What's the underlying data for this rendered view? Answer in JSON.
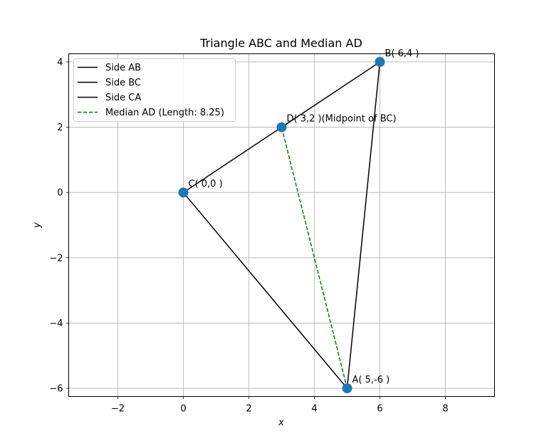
{
  "chart_data": {
    "type": "line",
    "title": "Triangle ABC and Median AD",
    "xlabel": "x",
    "ylabel": "y",
    "xlim": [
      -3.5,
      9.5
    ],
    "ylim": [
      -6.25,
      4.25
    ],
    "xticks": [
      -2,
      0,
      2,
      4,
      6,
      8
    ],
    "xtick_labels": [
      "−2",
      "0",
      "2",
      "4",
      "6",
      "8"
    ],
    "yticks": [
      -6,
      -4,
      -2,
      0,
      2,
      4
    ],
    "ytick_labels": [
      "−6",
      "−4",
      "−2",
      "0",
      "2",
      "4"
    ],
    "grid": true,
    "legend_position": "top-left",
    "series": [
      {
        "name": "Side AB",
        "x": [
          5,
          6
        ],
        "y": [
          -6,
          4
        ],
        "color": "#000000",
        "style": "solid"
      },
      {
        "name": "Side BC",
        "x": [
          6,
          0
        ],
        "y": [
          4,
          0
        ],
        "color": "#000000",
        "style": "solid"
      },
      {
        "name": "Side CA",
        "x": [
          0,
          5
        ],
        "y": [
          0,
          -6
        ],
        "color": "#000000",
        "style": "solid"
      },
      {
        "name": "Median AD (Length: 8.25)",
        "x": [
          5,
          3
        ],
        "y": [
          -6,
          2
        ],
        "color": "#008000",
        "style": "dashed"
      }
    ],
    "points": [
      {
        "x": 5,
        "y": -6,
        "label": "A( 5,-6 )"
      },
      {
        "x": 6,
        "y": 4,
        "label": "B( 6,4 )"
      },
      {
        "x": 0,
        "y": 0,
        "label": "C( 0,0 )"
      },
      {
        "x": 3,
        "y": 2,
        "label": "D( 3,2 )(Midpoint of BC)"
      }
    ],
    "point_color": "#1f77b4"
  }
}
